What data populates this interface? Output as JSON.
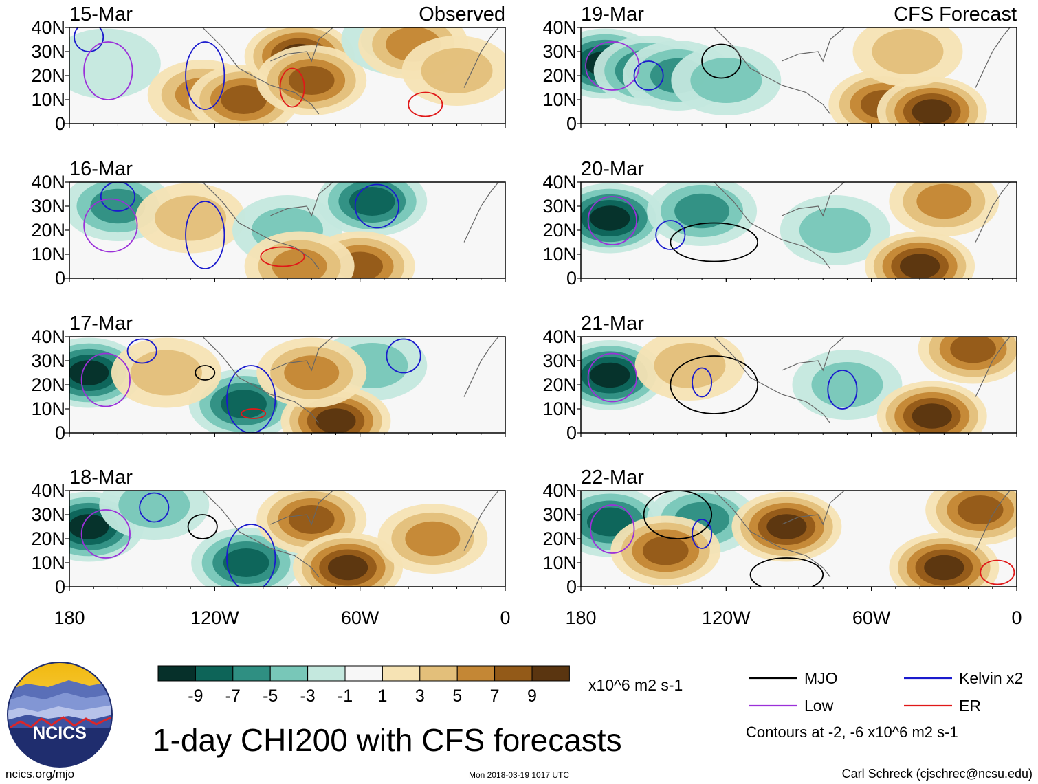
{
  "chart_data": {
    "type": "heatmap",
    "title": "1-day CHI200 with CFS forecasts",
    "xlabel": "",
    "ylabel": "",
    "xlim": [
      -180,
      0
    ],
    "ylim": [
      0,
      40
    ],
    "x_ticks": [
      {
        "value": -180,
        "label": "180"
      },
      {
        "value": -120,
        "label": "120W"
      },
      {
        "value": -60,
        "label": "60W"
      },
      {
        "value": 0,
        "label": "0"
      }
    ],
    "y_ticks": [
      {
        "value": 40,
        "label": "40N"
      },
      {
        "value": 30,
        "label": "30N"
      },
      {
        "value": 20,
        "label": "20N"
      },
      {
        "value": 10,
        "label": "10N"
      },
      {
        "value": 0,
        "label": "0"
      }
    ],
    "colorbar": {
      "unit_label": "x10^6 m2 s-1",
      "labels": [
        "-9",
        "-7",
        "-5",
        "-3",
        "-1",
        "1",
        "3",
        "5",
        "7",
        "9"
      ],
      "colors": [
        "#06302a",
        "#0d6458",
        "#2f8f82",
        "#78c7b8",
        "#c4e8de",
        "#f7f7f7",
        "#f6e3b4",
        "#e3bf7a",
        "#c48735",
        "#935a18",
        "#5a3510"
      ]
    },
    "legend": [
      {
        "label": "MJO",
        "color": "#000000"
      },
      {
        "label": "Kelvin x2",
        "color": "#1a1acd"
      },
      {
        "label": "Low",
        "color": "#9b30d9"
      },
      {
        "label": "ER",
        "color": "#e01818"
      }
    ],
    "contour_note": "Contours at -2, -6 x10^6 m2 s-1",
    "panels": [
      {
        "date": "15-Mar",
        "tag": "Observed",
        "blobs": [
          {
            "lon": -165,
            "lat": 25,
            "value": -2
          },
          {
            "lon": -125,
            "lat": 12,
            "value": 5
          },
          {
            "lon": -108,
            "lat": 10,
            "value": 7
          },
          {
            "lon": -85,
            "lat": 28,
            "value": 9
          },
          {
            "lon": -80,
            "lat": 18,
            "value": 7
          },
          {
            "lon": -45,
            "lat": 35,
            "value": -3
          },
          {
            "lon": -38,
            "lat": 33,
            "value": 5
          },
          {
            "lon": -20,
            "lat": 22,
            "value": 3
          }
        ],
        "contours": [
          {
            "type": "Kelvin x2",
            "lon": -172,
            "lat": 36,
            "rlon": 6,
            "rlat": 6
          },
          {
            "type": "Kelvin x2",
            "lon": -124,
            "lat": 20,
            "rlon": 8,
            "rlat": 14
          },
          {
            "type": "Low",
            "lon": -164,
            "lat": 22,
            "rlon": 10,
            "rlat": 12
          },
          {
            "type": "ER",
            "lon": -88,
            "lat": 15,
            "rlon": 5,
            "rlat": 8
          },
          {
            "type": "ER",
            "lon": -33,
            "lat": 8,
            "rlon": 7,
            "rlat": 5
          }
        ]
      },
      {
        "date": "19-Mar",
        "tag": "CFS Forecast",
        "blobs": [
          {
            "lon": -170,
            "lat": 25,
            "value": -9
          },
          {
            "lon": -152,
            "lat": 22,
            "value": -7
          },
          {
            "lon": -140,
            "lat": 20,
            "value": -5
          },
          {
            "lon": -120,
            "lat": 18,
            "value": -3
          },
          {
            "lon": -55,
            "lat": 8,
            "value": 7
          },
          {
            "lon": -35,
            "lat": 5,
            "value": 9
          },
          {
            "lon": -45,
            "lat": 30,
            "value": 3
          }
        ],
        "contours": [
          {
            "type": "MJO",
            "lon": -122,
            "lat": 26,
            "rlon": 8,
            "rlat": 7
          },
          {
            "type": "Low",
            "lon": -167,
            "lat": 24,
            "rlon": 11,
            "rlat": 10
          },
          {
            "type": "Kelvin x2",
            "lon": -152,
            "lat": 20,
            "rlon": 6,
            "rlat": 6
          }
        ]
      },
      {
        "date": "16-Mar",
        "tag": "",
        "blobs": [
          {
            "lon": -160,
            "lat": 30,
            "value": -5
          },
          {
            "lon": -130,
            "lat": 25,
            "value": 3
          },
          {
            "lon": -90,
            "lat": 20,
            "value": -3
          },
          {
            "lon": -55,
            "lat": 32,
            "value": -7
          },
          {
            "lon": -60,
            "lat": 5,
            "value": 7
          },
          {
            "lon": -85,
            "lat": 5,
            "value": 5
          }
        ],
        "contours": [
          {
            "type": "Kelvin x2",
            "lon": -160,
            "lat": 34,
            "rlon": 7,
            "rlat": 6
          },
          {
            "type": "Kelvin x2",
            "lon": -124,
            "lat": 18,
            "rlon": 8,
            "rlat": 14
          },
          {
            "type": "Kelvin x2",
            "lon": -53,
            "lat": 30,
            "rlon": 9,
            "rlat": 9
          },
          {
            "type": "Low",
            "lon": -163,
            "lat": 22,
            "rlon": 11,
            "rlat": 11
          },
          {
            "type": "ER",
            "lon": -92,
            "lat": 9,
            "rlon": 9,
            "rlat": 4
          }
        ]
      },
      {
        "date": "20-Mar",
        "tag": "",
        "blobs": [
          {
            "lon": -168,
            "lat": 25,
            "value": -9
          },
          {
            "lon": -130,
            "lat": 28,
            "value": -5
          },
          {
            "lon": -75,
            "lat": 20,
            "value": -3
          },
          {
            "lon": -40,
            "lat": 5,
            "value": 9
          },
          {
            "lon": -30,
            "lat": 32,
            "value": 5
          }
        ],
        "contours": [
          {
            "type": "MJO",
            "lon": -125,
            "lat": 15,
            "rlon": 18,
            "rlat": 8
          },
          {
            "type": "Low",
            "lon": -167,
            "lat": 24,
            "rlon": 10,
            "rlat": 10
          },
          {
            "type": "Kelvin x2",
            "lon": -143,
            "lat": 18,
            "rlon": 6,
            "rlat": 6
          }
        ]
      },
      {
        "date": "17-Mar",
        "tag": "",
        "blobs": [
          {
            "lon": -172,
            "lat": 25,
            "value": -9
          },
          {
            "lon": -108,
            "lat": 12,
            "value": -7
          },
          {
            "lon": -55,
            "lat": 28,
            "value": -3
          },
          {
            "lon": -70,
            "lat": 5,
            "value": 9
          },
          {
            "lon": -80,
            "lat": 25,
            "value": 5
          },
          {
            "lon": -140,
            "lat": 25,
            "value": 3
          }
        ],
        "contours": [
          {
            "type": "Kelvin x2",
            "lon": -150,
            "lat": 34,
            "rlon": 6,
            "rlat": 5
          },
          {
            "type": "Kelvin x2",
            "lon": -105,
            "lat": 14,
            "rlon": 10,
            "rlat": 14
          },
          {
            "type": "Kelvin x2",
            "lon": -42,
            "lat": 32,
            "rlon": 7,
            "rlat": 7
          },
          {
            "type": "Low",
            "lon": -165,
            "lat": 22,
            "rlon": 10,
            "rlat": 11
          },
          {
            "type": "MJO",
            "lon": -124,
            "lat": 25,
            "rlon": 4,
            "rlat": 3
          },
          {
            "type": "ER",
            "lon": -104,
            "lat": 8,
            "rlon": 5,
            "rlat": 2
          }
        ]
      },
      {
        "date": "21-Mar",
        "tag": "",
        "blobs": [
          {
            "lon": -168,
            "lat": 24,
            "value": -9
          },
          {
            "lon": -135,
            "lat": 28,
            "value": 3
          },
          {
            "lon": -70,
            "lat": 20,
            "value": -3
          },
          {
            "lon": -35,
            "lat": 7,
            "value": 9
          },
          {
            "lon": -18,
            "lat": 35,
            "value": 7
          }
        ],
        "contours": [
          {
            "type": "MJO",
            "lon": -125,
            "lat": 20,
            "rlon": 18,
            "rlat": 12
          },
          {
            "type": "Low",
            "lon": -167,
            "lat": 23,
            "rlon": 10,
            "rlat": 10
          },
          {
            "type": "Kelvin x2",
            "lon": -130,
            "lat": 21,
            "rlon": 4,
            "rlat": 6
          },
          {
            "type": "Kelvin x2",
            "lon": -72,
            "lat": 18,
            "rlon": 6,
            "rlat": 8
          }
        ]
      },
      {
        "date": "18-Mar",
        "tag": "",
        "blobs": [
          {
            "lon": -172,
            "lat": 25,
            "value": -9
          },
          {
            "lon": -107,
            "lat": 10,
            "value": -7
          },
          {
            "lon": -145,
            "lat": 34,
            "value": -3
          },
          {
            "lon": -80,
            "lat": 28,
            "value": 7
          },
          {
            "lon": -65,
            "lat": 8,
            "value": 9
          },
          {
            "lon": -30,
            "lat": 20,
            "value": 5
          }
        ],
        "contours": [
          {
            "type": "Kelvin x2",
            "lon": -145,
            "lat": 33,
            "rlon": 6,
            "rlat": 6
          },
          {
            "type": "Kelvin x2",
            "lon": -105,
            "lat": 12,
            "rlon": 10,
            "rlat": 14
          },
          {
            "type": "Low",
            "lon": -165,
            "lat": 22,
            "rlon": 10,
            "rlat": 10
          },
          {
            "type": "MJO",
            "lon": -125,
            "lat": 25,
            "rlon": 6,
            "rlat": 5
          }
        ]
      },
      {
        "date": "22-Mar",
        "tag": "",
        "blobs": [
          {
            "lon": -168,
            "lat": 27,
            "value": -7
          },
          {
            "lon": -130,
            "lat": 28,
            "value": -5
          },
          {
            "lon": -145,
            "lat": 15,
            "value": 7
          },
          {
            "lon": -95,
            "lat": 25,
            "value": 9
          },
          {
            "lon": -30,
            "lat": 8,
            "value": 9
          },
          {
            "lon": -15,
            "lat": 32,
            "value": 7
          }
        ],
        "contours": [
          {
            "type": "MJO",
            "lon": -140,
            "lat": 30,
            "rlon": 14,
            "rlat": 10
          },
          {
            "type": "MJO",
            "lon": -95,
            "lat": 5,
            "rlon": 15,
            "rlat": 7
          },
          {
            "type": "Low",
            "lon": -167,
            "lat": 24,
            "rlon": 9,
            "rlat": 10
          },
          {
            "type": "Kelvin x2",
            "lon": -130,
            "lat": 22,
            "rlon": 4,
            "rlat": 6
          },
          {
            "type": "ER",
            "lon": -8,
            "lat": 6,
            "rlon": 7,
            "rlat": 5
          }
        ]
      }
    ]
  },
  "footer": {
    "logo_text": "NCICS",
    "url": "ncics.org/mjo",
    "timestamp": "Mon 2018-03-19 1017 UTC",
    "credit": "Carl Schreck (cjschrec@ncsu.edu)"
  }
}
